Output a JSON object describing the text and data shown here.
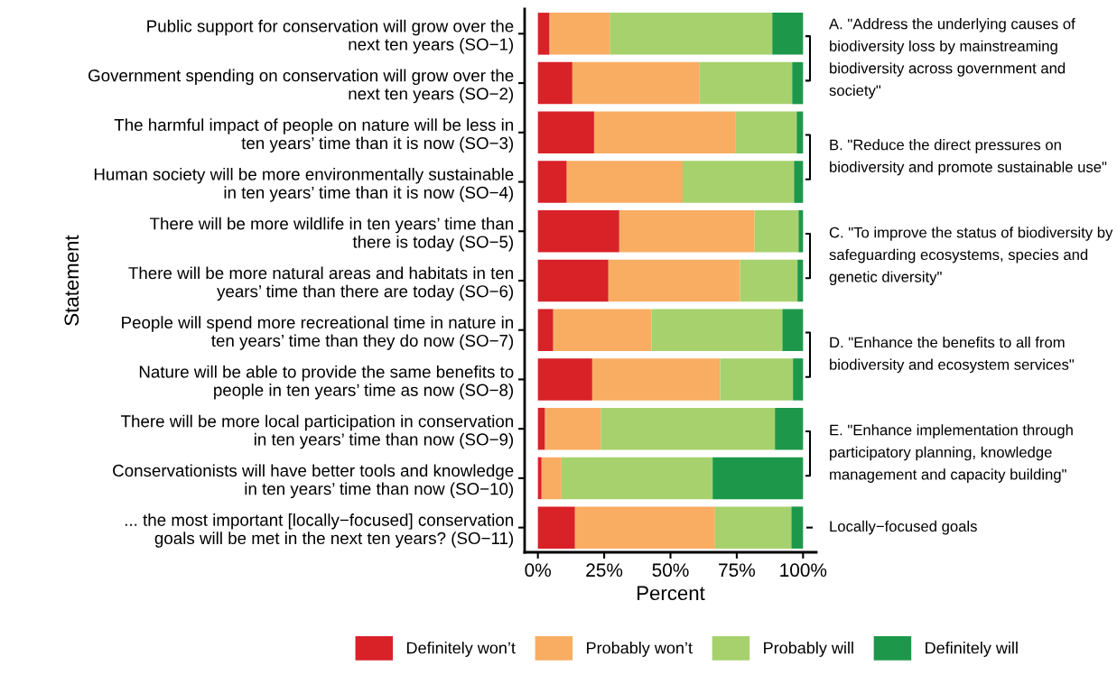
{
  "chart_data": {
    "type": "bar",
    "orientation": "horizontal",
    "stacked": true,
    "xlabel": "Percent",
    "ylabel": "Statement",
    "categories": [
      "Public support for conservation will grow over the\nnext ten years (SO−1)",
      "Government spending on conservation will grow over the\nnext ten years (SO−2)",
      "The harmful impact of people on nature will be less in\nten years’ time than it is now (SO−3)",
      "Human society will be more environmentally sustainable\nin ten years’ time than it is now (SO−4)",
      "There will be more wildlife in ten years’ time than\nthere is today (SO−5)",
      "There will be more natural areas and habitats in ten\nyears’ time than there are today (SO−6)",
      "People will spend more recreational time in nature in\nten years’ time than they do now (SO−7)",
      "Nature will be able to provide the same benefits to\npeople in ten years’ time as now (SO−8)",
      "There will be more local participation in conservation\nin ten years’ time than now (SO−9)",
      "Conservationists will have better tools and knowledge\nin ten years’ time than now (SO−10)",
      "... the most important [locally−focused] conservation\ngoals will be met in the next ten years? (SO−11)"
    ],
    "series": [
      {
        "name": "Definitely won’t",
        "color": "#d92128",
        "values": [
          4.4,
          13.0,
          21.2,
          10.9,
          30.7,
          26.6,
          5.8,
          20.5,
          2.7,
          1.4,
          14.0
        ]
      },
      {
        "name": "Probably won’t",
        "color": "#f9ad62",
        "values": [
          22.7,
          47.8,
          53.2,
          43.7,
          51.0,
          49.6,
          37.0,
          48.2,
          21.0,
          7.5,
          52.8
        ]
      },
      {
        "name": "Probably will",
        "color": "#a7d16c",
        "values": [
          61.3,
          35.1,
          23.2,
          42.0,
          16.6,
          21.7,
          49.4,
          27.5,
          65.7,
          57.0,
          28.8
        ]
      },
      {
        "name": "Definitely will",
        "color": "#1d984a",
        "values": [
          11.6,
          4.1,
          2.4,
          3.4,
          1.7,
          2.1,
          7.8,
          3.8,
          10.6,
          34.1,
          4.4
        ]
      }
    ],
    "xlim": [
      -5,
      105
    ],
    "xticks": [
      {
        "value": 0,
        "label": "0%"
      },
      {
        "value": 25,
        "label": "25%"
      },
      {
        "value": 50,
        "label": "50%"
      },
      {
        "value": 75,
        "label": "75%"
      },
      {
        "value": 100,
        "label": "100%"
      }
    ],
    "annotations": [
      "A. \"Address the underlying causes of biodiversity loss by mainstreaming biodiversity across government and society\"",
      "B. \"Reduce the direct pressures on biodiversity and promote sustainable use\"",
      "C. \"To improve the status of biodiversity by safeguarding ecosystems, species and genetic diversity\"",
      "D. \"Enhance the benefits to all from biodiversity and ecosystem services\"",
      "E. \"Enhance implementation through participatory planning, knowledge management and capacity building\"",
      "Locally−focused goals"
    ],
    "grid": false,
    "legend": "bottom"
  }
}
